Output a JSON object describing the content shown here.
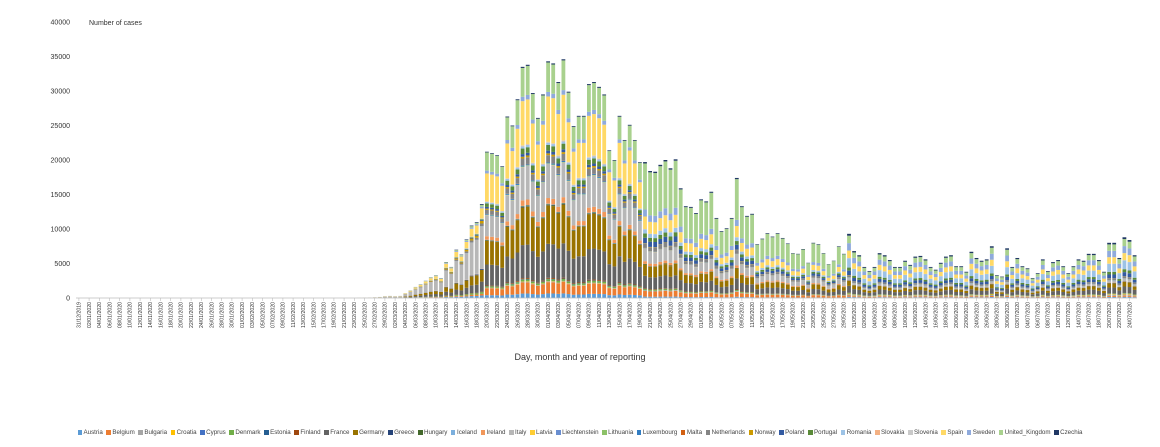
{
  "chart_data": {
    "type": "bar",
    "stacked": true,
    "ylabel": "Number of cases",
    "xlabel": "Day, month and year of reporting",
    "ylim": [
      0,
      40000
    ],
    "y_ticks": [
      0,
      5000,
      10000,
      15000,
      20000,
      25000,
      30000,
      35000,
      40000
    ],
    "grid": false,
    "legend_position": "bottom",
    "start_date": "31/12/2019",
    "x_tick_labels": [
      "31/12/2019",
      "02/01/2020",
      "04/01/2020",
      "06/01/2020",
      "08/01/2020",
      "10/01/2020",
      "12/01/2020",
      "14/01/2020",
      "16/01/2020",
      "18/01/2020",
      "20/01/2020",
      "22/01/2020",
      "24/01/2020",
      "26/01/2020",
      "28/01/2020",
      "30/01/2020",
      "01/02/2020",
      "03/02/2020",
      "05/02/2020",
      "07/02/2020",
      "09/02/2020",
      "11/02/2020",
      "13/02/2020",
      "15/02/2020",
      "17/02/2020",
      "19/02/2020",
      "21/02/2020",
      "23/02/2020",
      "25/02/2020",
      "27/02/2020",
      "29/02/2020",
      "02/03/2020",
      "04/03/2020",
      "06/03/2020",
      "08/03/2020",
      "10/03/2020",
      "12/03/2020",
      "14/03/2020",
      "16/03/2020",
      "18/03/2020",
      "20/03/2020",
      "22/03/2020",
      "24/03/2020",
      "26/03/2020",
      "28/03/2020",
      "30/03/2020",
      "01/04/2020",
      "03/04/2020",
      "05/04/2020",
      "07/04/2020",
      "09/04/2020",
      "11/04/2020",
      "13/04/2020",
      "15/04/2020",
      "17/04/2020",
      "19/04/2020",
      "21/04/2020",
      "23/04/2020",
      "25/04/2020",
      "27/04/2020",
      "29/04/2020",
      "01/05/2020",
      "03/05/2020",
      "05/05/2020",
      "07/05/2020",
      "09/05/2020",
      "11/05/2020",
      "13/05/2020",
      "15/05/2020",
      "17/05/2020",
      "19/05/2020",
      "21/05/2020",
      "23/05/2020",
      "25/05/2020",
      "27/05/2020",
      "29/05/2020",
      "31/05/2020",
      "02/06/2020",
      "04/06/2020",
      "06/06/2020",
      "08/06/2020",
      "10/06/2020",
      "12/06/2020",
      "14/06/2020",
      "16/06/2020",
      "18/06/2020",
      "20/06/2020",
      "22/06/2020",
      "24/06/2020",
      "26/06/2020",
      "28/06/2020",
      "30/06/2020",
      "02/07/2020",
      "04/07/2020",
      "06/07/2020",
      "08/07/2020",
      "10/07/2020",
      "12/07/2020",
      "14/07/2020",
      "16/07/2020",
      "18/07/2020",
      "20/07/2020",
      "22/07/2020",
      "24/07/2020"
    ],
    "daily_totals": [
      0,
      0,
      0,
      0,
      0,
      0,
      0,
      0,
      0,
      0,
      0,
      0,
      0,
      0,
      0,
      0,
      0,
      0,
      0,
      0,
      0,
      0,
      0,
      0,
      0,
      0,
      0,
      0,
      0,
      0,
      0,
      0,
      0,
      0,
      0,
      0,
      0,
      0,
      0,
      0,
      0,
      0,
      0,
      0,
      0,
      0,
      0,
      0,
      0,
      0,
      0,
      0,
      0,
      0,
      0,
      20,
      40,
      60,
      100,
      150,
      250,
      300,
      250,
      300,
      700,
      1100,
      1600,
      2000,
      2500,
      3000,
      3300,
      2900,
      5200,
      4500,
      7000,
      6300,
      8500,
      10500,
      11000,
      13600,
      21200,
      21000,
      20700,
      19100,
      26300,
      25000,
      28800,
      33500,
      33800,
      29700,
      26100,
      29500,
      34300,
      34000,
      31300,
      34600,
      29900,
      24900,
      26400,
      26400,
      31000,
      31300,
      30600,
      29500,
      21400,
      20000,
      26400,
      22900,
      25100,
      22900,
      19700,
      19700,
      18400,
      18300,
      19300,
      20000,
      18800,
      20100,
      15900,
      13300,
      13200,
      12300,
      14300,
      14000,
      15400,
      11600,
      9700,
      10100,
      11600,
      17400,
      13300,
      11900,
      12200,
      7800,
      8600,
      9400,
      8900,
      9400,
      8700,
      7900,
      6500,
      6400,
      7100,
      5100,
      8000,
      7800,
      6500,
      4900,
      5400,
      7500,
      6400,
      9300,
      6800,
      6200,
      4500,
      3900,
      4500,
      6500,
      6200,
      5500,
      4500,
      4500,
      5400,
      4800,
      6000,
      6100,
      5600,
      4500,
      4100,
      5100,
      6000,
      6200,
      4600,
      4600,
      3800,
      6700,
      5800,
      5400,
      5600,
      7500,
      3300,
      3100,
      7200,
      4500,
      5800,
      4600,
      4300,
      2900,
      3600,
      5600,
      3900,
      5200,
      5500,
      4600,
      3600,
      4600,
      5600,
      5400,
      6400,
      6400,
      5500,
      3800,
      8000,
      8000,
      5800,
      8800,
      8400,
      6200
    ],
    "phase_boundaries_day_index": [
      80,
      111,
      151
    ],
    "series": [
      {
        "name": "Austria",
        "color": "#5B9BD5",
        "share": [
          0.03,
          0.02,
          0.01,
          0.02
        ]
      },
      {
        "name": "Belgium",
        "color": "#ED7D31",
        "share": [
          0.02,
          0.05,
          0.04,
          0.02
        ]
      },
      {
        "name": "Bulgaria",
        "color": "#A5A5A5",
        "share": [
          0.0,
          0.002,
          0.004,
          0.02
        ]
      },
      {
        "name": "Croatia",
        "color": "#FFC000",
        "share": [
          0.0,
          0.002,
          0.001,
          0.01
        ]
      },
      {
        "name": "Cyprus",
        "color": "#4472C4",
        "share": [
          0.0,
          0.001,
          0.001,
          0.002
        ]
      },
      {
        "name": "Denmark",
        "color": "#70AD47",
        "share": [
          0.02,
          0.008,
          0.008,
          0.01
        ]
      },
      {
        "name": "Estonia",
        "color": "#255E91",
        "share": [
          0.0,
          0.002,
          0.001,
          0.001
        ]
      },
      {
        "name": "Finland",
        "color": "#9E480E",
        "share": [
          0.005,
          0.004,
          0.004,
          0.003
        ]
      },
      {
        "name": "France",
        "color": "#636363",
        "share": [
          0.12,
          0.15,
          0.09,
          0.11
        ]
      },
      {
        "name": "Germany",
        "color": "#997300",
        "share": [
          0.14,
          0.17,
          0.08,
          0.08
        ]
      },
      {
        "name": "Greece",
        "color": "#264478",
        "share": [
          0.01,
          0.002,
          0.001,
          0.005
        ]
      },
      {
        "name": "Hungary",
        "color": "#43682B",
        "share": [
          0.0,
          0.003,
          0.004,
          0.003
        ]
      },
      {
        "name": "Iceland",
        "color": "#7CAFDD",
        "share": [
          0.005,
          0.002,
          0.0,
          0.0
        ]
      },
      {
        "name": "Ireland",
        "color": "#F1975A",
        "share": [
          0.005,
          0.025,
          0.02,
          0.005
        ]
      },
      {
        "name": "Italy",
        "color": "#B7B7B7",
        "share": [
          0.5,
          0.15,
          0.09,
          0.04
        ]
      },
      {
        "name": "Latvia",
        "color": "#FFCD33",
        "share": [
          0.0,
          0.001,
          0.001,
          0.0
        ]
      },
      {
        "name": "Liechtenstein",
        "color": "#698ED0",
        "share": [
          0.0,
          0.0,
          0.0,
          0.0
        ]
      },
      {
        "name": "Lithuania",
        "color": "#8CC168",
        "share": [
          0.0,
          0.002,
          0.001,
          0.002
        ]
      },
      {
        "name": "Luxembourg",
        "color": "#327DC2",
        "share": [
          0.002,
          0.005,
          0.002,
          0.005
        ]
      },
      {
        "name": "Malta",
        "color": "#D26012",
        "share": [
          0.0,
          0.001,
          0.001,
          0.001
        ]
      },
      {
        "name": "Netherlands",
        "color": "#848484",
        "share": [
          0.03,
          0.03,
          0.03,
          0.03
        ]
      },
      {
        "name": "Norway",
        "color": "#CC9A00",
        "share": [
          0.03,
          0.008,
          0.003,
          0.004
        ]
      },
      {
        "name": "Poland",
        "color": "#335AA1",
        "share": [
          0.01,
          0.012,
          0.04,
          0.07
        ]
      },
      {
        "name": "Portugal",
        "color": "#5A8A39",
        "share": [
          0.01,
          0.025,
          0.03,
          0.05
        ]
      },
      {
        "name": "Romania",
        "color": "#9DC3E6",
        "share": [
          0.005,
          0.01,
          0.03,
          0.15
        ]
      },
      {
        "name": "Slovakia",
        "color": "#F4B183",
        "share": [
          0.0,
          0.002,
          0.001,
          0.002
        ]
      },
      {
        "name": "Slovenia",
        "color": "#C9C9C9",
        "share": [
          0.005,
          0.002,
          0.001,
          0.002
        ]
      },
      {
        "name": "Spain",
        "color": "#FFD966",
        "share": [
          0.12,
          0.2,
          0.09,
          0.12
        ]
      },
      {
        "name": "Sweden",
        "color": "#8FAADC",
        "share": [
          0.02,
          0.02,
          0.05,
          0.12
        ]
      },
      {
        "name": "United_Kingdom",
        "color": "#A9D18E",
        "share": [
          0.02,
          0.13,
          0.33,
          0.12
        ]
      },
      {
        "name": "Czechia",
        "color": "#203864",
        "share": [
          0.01,
          0.005,
          0.01,
          0.03
        ]
      }
    ]
  }
}
